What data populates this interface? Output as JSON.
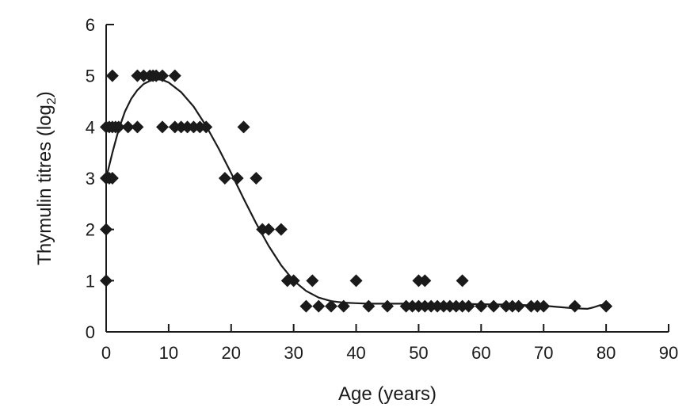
{
  "chart_data": {
    "type": "scatter",
    "title": "",
    "xlabel": "Age (years)",
    "ylabel": {
      "base": "Thymulin titres (log",
      "subscript": "2",
      "suffix": ")"
    },
    "xlim": [
      0,
      90
    ],
    "ylim": [
      0,
      6
    ],
    "x_ticks": [
      0,
      10,
      20,
      30,
      40,
      50,
      60,
      70,
      80,
      90
    ],
    "y_ticks": [
      0,
      1,
      2,
      3,
      4,
      5,
      6
    ],
    "grid": false,
    "legend": "none",
    "marker_shape": "diamond",
    "marker_color": "#1a1a1a",
    "line_color": "#1a1a1a",
    "points": [
      [
        0,
        1
      ],
      [
        0,
        2
      ],
      [
        0,
        3
      ],
      [
        0.5,
        3
      ],
      [
        1,
        3
      ],
      [
        0,
        4
      ],
      [
        0.5,
        4
      ],
      [
        1,
        4
      ],
      [
        1.5,
        4
      ],
      [
        2,
        4
      ],
      [
        3.5,
        4
      ],
      [
        5,
        4
      ],
      [
        1,
        5
      ],
      [
        5,
        5
      ],
      [
        6,
        5
      ],
      [
        7,
        5
      ],
      [
        7.5,
        5
      ],
      [
        8,
        5
      ],
      [
        9,
        5
      ],
      [
        11,
        5
      ],
      [
        9,
        4
      ],
      [
        11,
        4
      ],
      [
        12,
        4
      ],
      [
        13,
        4
      ],
      [
        14,
        4
      ],
      [
        15,
        4
      ],
      [
        16,
        4
      ],
      [
        19,
        3
      ],
      [
        21,
        3
      ],
      [
        24,
        3
      ],
      [
        22,
        4
      ],
      [
        25,
        2
      ],
      [
        26,
        2
      ],
      [
        28,
        2
      ],
      [
        29,
        1
      ],
      [
        30,
        1
      ],
      [
        33,
        1
      ],
      [
        32,
        0.5
      ],
      [
        34,
        0.5
      ],
      [
        36,
        0.5
      ],
      [
        38,
        0.5
      ],
      [
        40,
        1
      ],
      [
        42,
        0.5
      ],
      [
        45,
        0.5
      ],
      [
        48,
        0.5
      ],
      [
        49,
        0.5
      ],
      [
        50,
        1
      ],
      [
        51,
        1
      ],
      [
        50,
        0.5
      ],
      [
        51,
        0.5
      ],
      [
        52,
        0.5
      ],
      [
        53,
        0.5
      ],
      [
        54,
        0.5
      ],
      [
        55,
        0.5
      ],
      [
        56,
        0.5
      ],
      [
        57,
        1
      ],
      [
        57,
        0.5
      ],
      [
        58,
        0.5
      ],
      [
        60,
        0.5
      ],
      [
        62,
        0.5
      ],
      [
        64,
        0.5
      ],
      [
        65,
        0.5
      ],
      [
        66,
        0.5
      ],
      [
        68,
        0.5
      ],
      [
        69,
        0.5
      ],
      [
        70,
        0.5
      ],
      [
        75,
        0.5
      ],
      [
        80,
        0.5
      ]
    ],
    "trend": {
      "name": "",
      "x": [
        0,
        1,
        2,
        3,
        4,
        5,
        6,
        7,
        8,
        9,
        10,
        12,
        14,
        16,
        18,
        20,
        22,
        24,
        26,
        28,
        30,
        32,
        34,
        36,
        38,
        40,
        42,
        45,
        50,
        55,
        60,
        65,
        70,
        73,
        75,
        77,
        78,
        79,
        80
      ],
      "y": [
        3.0,
        3.5,
        3.95,
        4.3,
        4.55,
        4.72,
        4.84,
        4.9,
        4.93,
        4.92,
        4.87,
        4.68,
        4.4,
        4.02,
        3.58,
        3.1,
        2.6,
        2.12,
        1.68,
        1.3,
        1.0,
        0.8,
        0.67,
        0.6,
        0.57,
        0.56,
        0.55,
        0.55,
        0.55,
        0.55,
        0.54,
        0.53,
        0.51,
        0.48,
        0.46,
        0.45,
        0.48,
        0.52,
        0.53
      ]
    }
  }
}
